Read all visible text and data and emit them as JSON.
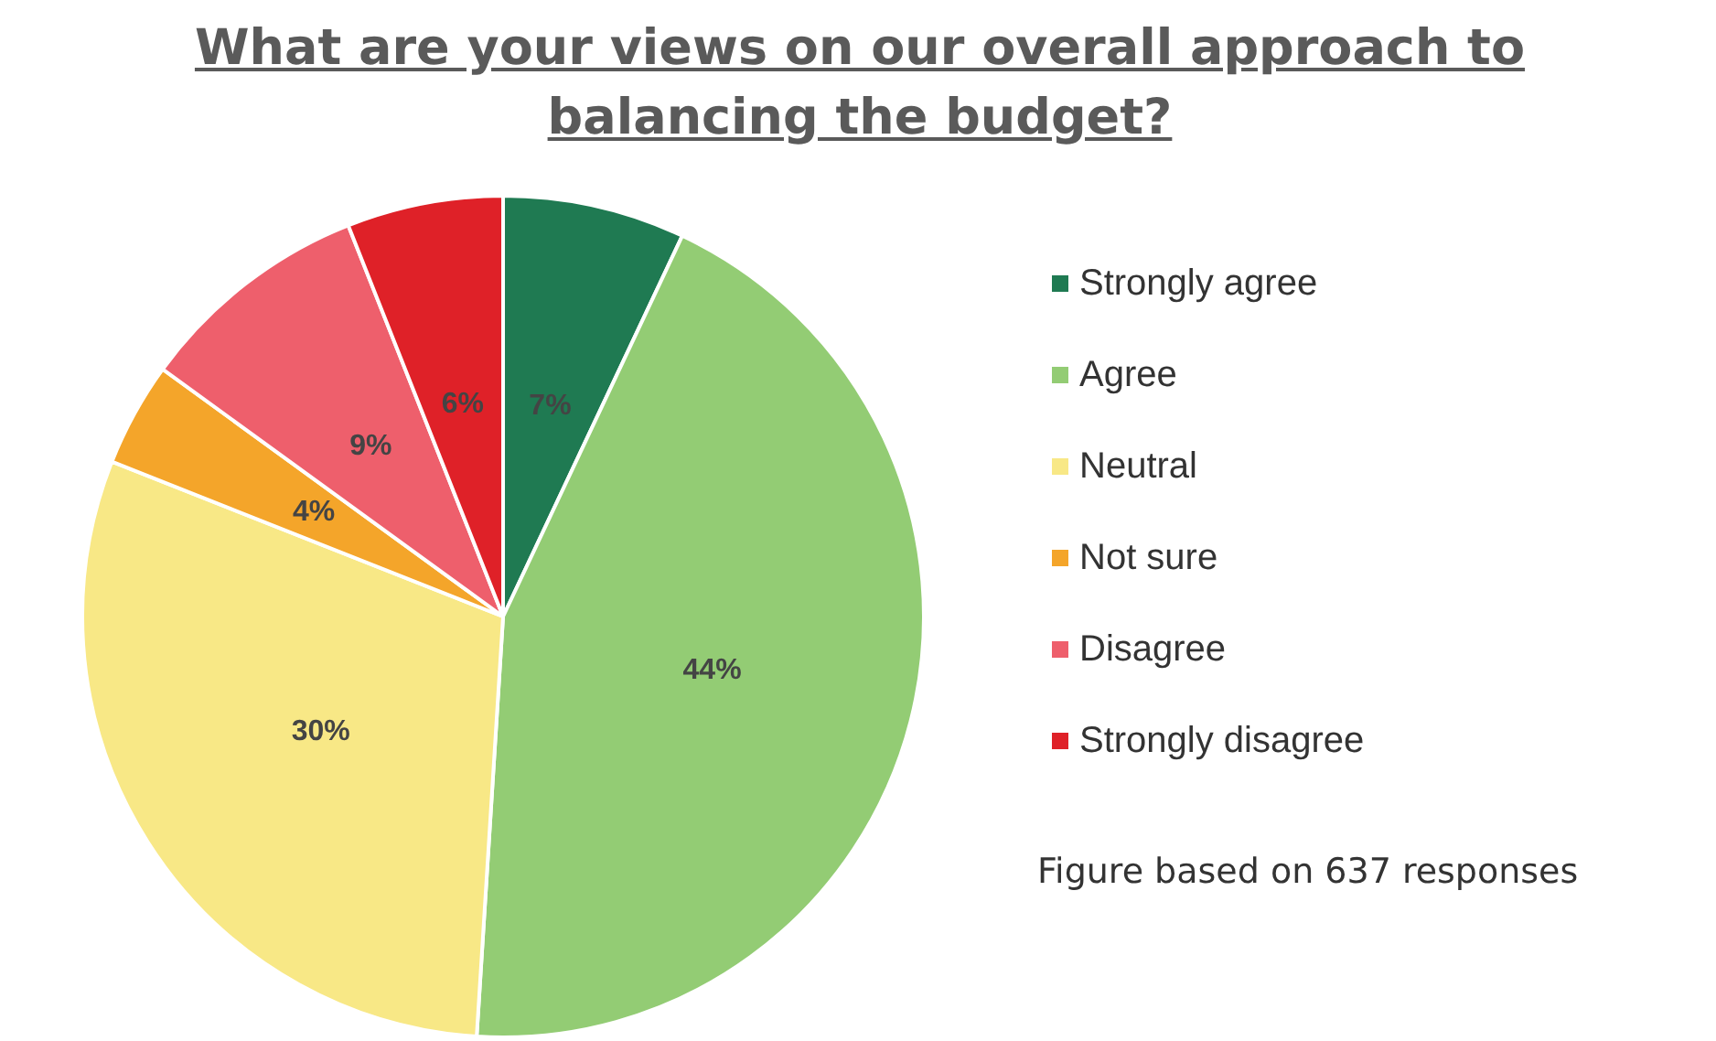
{
  "chart_data": {
    "type": "pie",
    "title": "What are your views on our overall approach to balancing the budget?",
    "categories": [
      "Strongly agree",
      "Agree",
      "Neutral",
      "Not sure",
      "Disagree",
      "Strongly disagree"
    ],
    "values": [
      7,
      44,
      30,
      4,
      9,
      6
    ],
    "value_labels": [
      "7%",
      "44%",
      "30%",
      "4%",
      "9%",
      "6%"
    ],
    "colors": [
      "#1f7a52",
      "#93cc74",
      "#f8e886",
      "#f4a52a",
      "#ee5f6c",
      "#df2128"
    ],
    "legend": "right",
    "annotations": [
      "Figure based on 637 responses"
    ]
  }
}
